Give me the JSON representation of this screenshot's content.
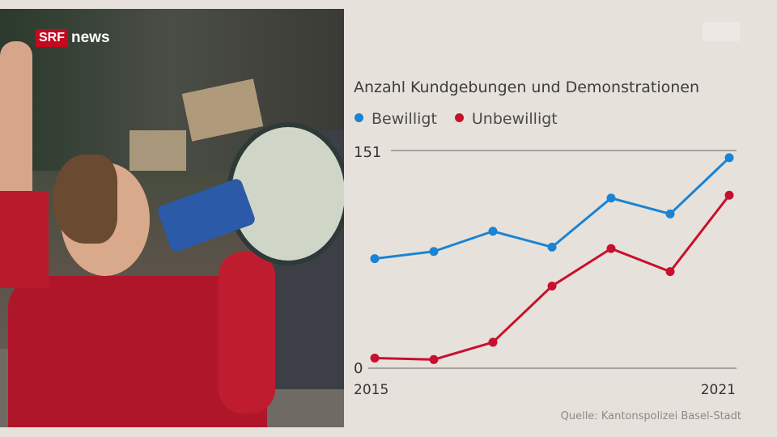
{
  "brand": {
    "srf": "SRF",
    "news": "news"
  },
  "source": "Quelle: Kantonspolizei Basel-Stadt",
  "chart_data": {
    "type": "line",
    "title": "Anzahl Kundgebungen und Demonstrationen",
    "x": [
      2015,
      2016,
      2017,
      2018,
      2019,
      2020,
      2021
    ],
    "x_tick_labels": [
      "2015",
      "2021"
    ],
    "y_tick_labels": [
      "0",
      "151"
    ],
    "ylim": [
      0,
      151
    ],
    "grid": "horizontal lines at 0 and 151",
    "legend": "top-left",
    "series": [
      {
        "name": "Bewilligt",
        "color": "#1a83d3",
        "values": [
          76,
          81,
          95,
          84,
          118,
          107,
          146
        ]
      },
      {
        "name": "Unbewilligt",
        "color": "#c8102e",
        "values": [
          7,
          6,
          18,
          57,
          83,
          67,
          120
        ]
      }
    ]
  }
}
